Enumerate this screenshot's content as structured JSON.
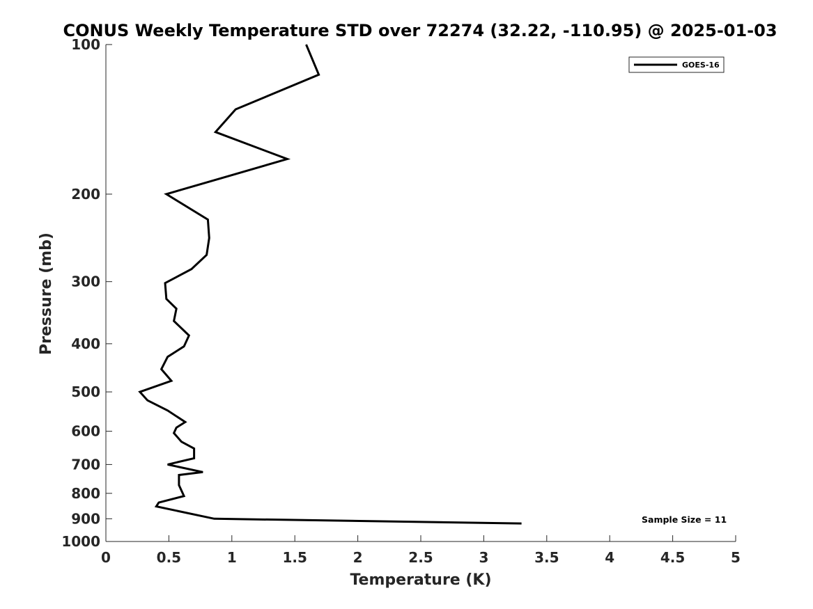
{
  "chart_data": {
    "type": "line",
    "title": "CONUS Weekly Temperature STD over 72274 (32.22, -110.95) @ 2025-01-03",
    "xlabel": "Temperature (K)",
    "ylabel": "Pressure (mb)",
    "xlim": [
      0,
      5
    ],
    "ylim": [
      100,
      1000
    ],
    "yscale": "log",
    "y_reversed": true,
    "grid": false,
    "legend_position": "top-right",
    "x_ticks": [
      0,
      0.5,
      1,
      1.5,
      2,
      2.5,
      3,
      3.5,
      4,
      4.5,
      5
    ],
    "x_tick_labels": [
      "0",
      "0.5",
      "1",
      "1.5",
      "2",
      "2.5",
      "3",
      "3.5",
      "4",
      "4.5",
      "5"
    ],
    "y_ticks": [
      100,
      200,
      300,
      400,
      500,
      600,
      700,
      800,
      900,
      1000
    ],
    "y_tick_labels": [
      "100",
      "200",
      "300",
      "400",
      "500",
      "600",
      "700",
      "800",
      "900",
      "1000"
    ],
    "series": [
      {
        "name": "GOES-16",
        "color": "#000000",
        "x": [
          1.59,
          1.69,
          1.03,
          0.87,
          1.44,
          0.48,
          0.81,
          0.82,
          0.8,
          0.68,
          0.47,
          0.48,
          0.56,
          0.54,
          0.66,
          0.62,
          0.49,
          0.44,
          0.52,
          0.27,
          0.33,
          0.49,
          0.63,
          0.56,
          0.54,
          0.6,
          0.7,
          0.7,
          0.49,
          0.77,
          0.58,
          0.58,
          0.62,
          0.42,
          0.4,
          0.86,
          3.3
        ],
        "y": [
          100,
          115,
          135,
          150,
          170,
          200,
          225,
          245,
          265,
          283,
          302,
          325,
          340,
          360,
          385,
          405,
          425,
          450,
          475,
          500,
          520,
          545,
          575,
          590,
          605,
          630,
          650,
          680,
          700,
          725,
          735,
          770,
          810,
          835,
          850,
          900,
          920
        ]
      }
    ],
    "annotation": "Sample Size = 11"
  }
}
